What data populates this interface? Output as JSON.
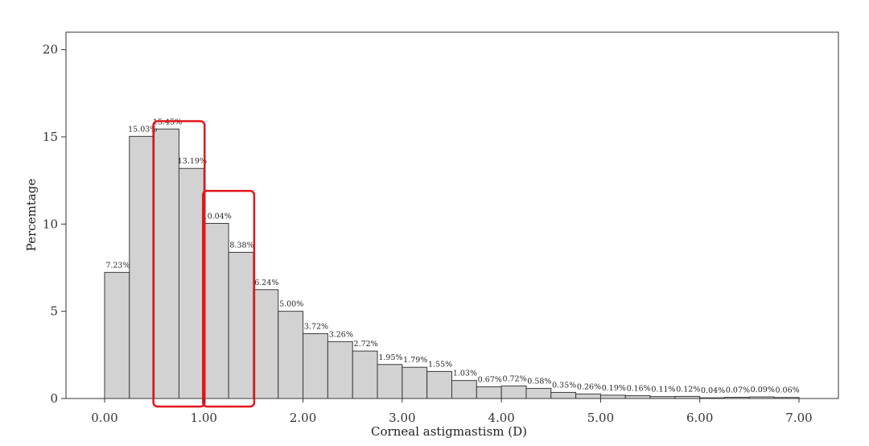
{
  "chart_data": {
    "type": "bar",
    "xlabel": "Corneal astigmastism (D)",
    "ylabel": "Percemtage",
    "ylim": [
      0,
      21
    ],
    "xlim": [
      -0.35,
      7.4
    ],
    "bin_width": 0.25,
    "x_ticks": [
      "0.00",
      "1.00",
      "2.00",
      "3.00",
      "4.00",
      "5.00",
      "6.00",
      "7.00"
    ],
    "x_tick_values": [
      0,
      1,
      2,
      3,
      4,
      5,
      6,
      7
    ],
    "y_ticks": [
      "0",
      "5",
      "10",
      "15",
      "20"
    ],
    "y_tick_values": [
      0,
      5,
      10,
      15,
      20
    ],
    "grid": false,
    "bar_color": "#d2d2d2",
    "bins": [
      {
        "x0": 0.0,
        "value": 7.23,
        "label": "7.23%"
      },
      {
        "x0": 0.25,
        "value": 15.03,
        "label": "15.03%"
      },
      {
        "x0": 0.5,
        "value": 15.45,
        "label": "15.45%"
      },
      {
        "x0": 0.75,
        "value": 13.19,
        "label": "13.19%"
      },
      {
        "x0": 1.0,
        "value": 10.04,
        "label": "10.04%"
      },
      {
        "x0": 1.25,
        "value": 8.38,
        "label": "8.38%"
      },
      {
        "x0": 1.5,
        "value": 6.24,
        "label": "6.24%"
      },
      {
        "x0": 1.75,
        "value": 5.0,
        "label": "5.00%"
      },
      {
        "x0": 2.0,
        "value": 3.72,
        "label": "3.72%"
      },
      {
        "x0": 2.25,
        "value": 3.26,
        "label": "3.26%"
      },
      {
        "x0": 2.5,
        "value": 2.72,
        "label": "2.72%"
      },
      {
        "x0": 2.75,
        "value": 1.95,
        "label": "1.95%"
      },
      {
        "x0": 3.0,
        "value": 1.79,
        "label": "1.79%"
      },
      {
        "x0": 3.25,
        "value": 1.55,
        "label": "1.55%"
      },
      {
        "x0": 3.5,
        "value": 1.03,
        "label": "1.03%"
      },
      {
        "x0": 3.75,
        "value": 0.67,
        "label": "0.67%"
      },
      {
        "x0": 4.0,
        "value": 0.72,
        "label": "0.72%"
      },
      {
        "x0": 4.25,
        "value": 0.58,
        "label": "0.58%"
      },
      {
        "x0": 4.5,
        "value": 0.35,
        "label": "0.35%"
      },
      {
        "x0": 4.75,
        "value": 0.26,
        "label": "0.26%"
      },
      {
        "x0": 5.0,
        "value": 0.19,
        "label": "0.19%"
      },
      {
        "x0": 5.25,
        "value": 0.16,
        "label": "0.16%"
      },
      {
        "x0": 5.5,
        "value": 0.11,
        "label": "0.11%"
      },
      {
        "x0": 5.75,
        "value": 0.12,
        "label": "0.12%"
      },
      {
        "x0": 6.0,
        "value": 0.04,
        "label": "0.04%"
      },
      {
        "x0": 6.25,
        "value": 0.07,
        "label": "0.07%"
      },
      {
        "x0": 6.5,
        "value": 0.09,
        "label": "0.09%"
      },
      {
        "x0": 6.75,
        "value": 0.06,
        "label": "0.06%"
      }
    ],
    "highlights": [
      {
        "x_range": [
          0.5,
          1.0
        ],
        "y_top": 15.9,
        "color": "#e0161b"
      },
      {
        "x_range": [
          1.0,
          1.5
        ],
        "y_top": 11.9,
        "color": "#e0161b"
      }
    ]
  }
}
